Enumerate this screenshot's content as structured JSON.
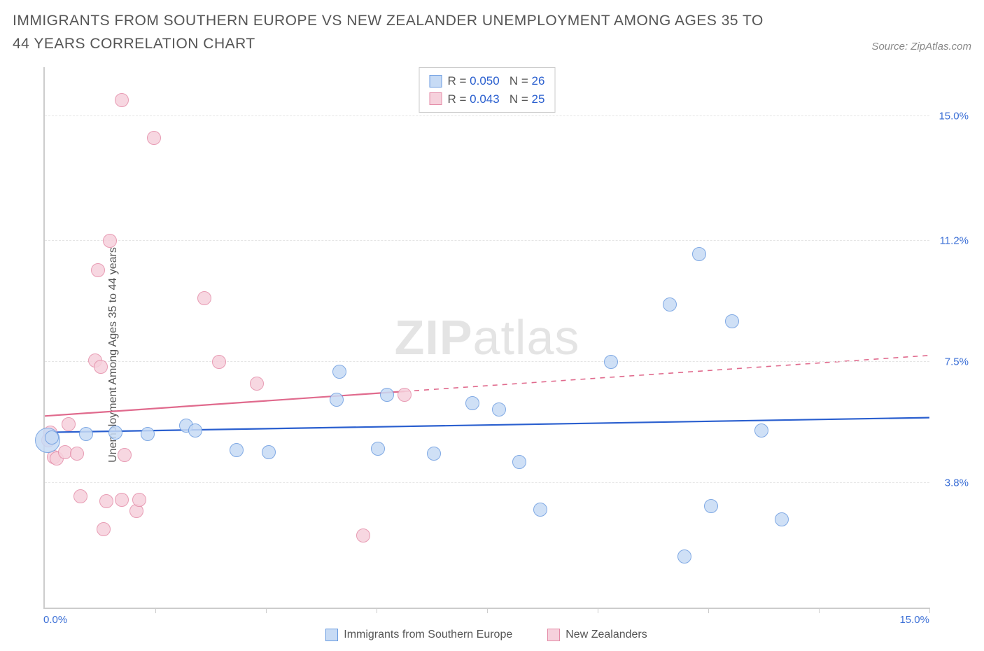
{
  "title": "IMMIGRANTS FROM SOUTHERN EUROPE VS NEW ZEALANDER UNEMPLOYMENT AMONG AGES 35 TO 44 YEARS CORRELATION CHART",
  "source_label": "Source: ZipAtlas.com",
  "ylabel": "Unemployment Among Ages 35 to 44 years",
  "watermark_bold": "ZIP",
  "watermark_rest": "atlas",
  "chart": {
    "type": "scatter",
    "xlim": [
      0,
      15
    ],
    "ylim": [
      0,
      16.5
    ],
    "x_min_label": "0.0%",
    "x_max_label": "15.0%",
    "y_ticks": [
      {
        "v": 3.8,
        "label": "3.8%"
      },
      {
        "v": 7.5,
        "label": "7.5%"
      },
      {
        "v": 11.2,
        "label": "11.2%"
      },
      {
        "v": 15.0,
        "label": "15.0%"
      }
    ],
    "x_tick_positions": [
      1.88,
      3.75,
      5.63,
      7.5,
      9.38,
      11.25,
      13.13,
      15.0
    ],
    "grid_color": "#e5e5e5",
    "axis_color": "#cccccc",
    "background_color": "#ffffff",
    "series": [
      {
        "name": "Immigrants from Southern Europe",
        "fill": "#c7dbf5",
        "stroke": "#6a9be0",
        "line_color": "#2a5fcf",
        "trend": {
          "x0": 0,
          "y0": 5.35,
          "x1": 15,
          "y1": 5.8,
          "solid_until_x": 15
        },
        "r_label": "0.050",
        "n_label": "26",
        "marker_r": 10,
        "points": [
          {
            "x": 0.05,
            "y": 5.1,
            "r": 18
          },
          {
            "x": 0.12,
            "y": 5.2
          },
          {
            "x": 0.7,
            "y": 5.3
          },
          {
            "x": 1.2,
            "y": 5.35
          },
          {
            "x": 1.75,
            "y": 5.3
          },
          {
            "x": 2.4,
            "y": 5.55
          },
          {
            "x": 2.55,
            "y": 5.4
          },
          {
            "x": 3.25,
            "y": 4.8
          },
          {
            "x": 3.8,
            "y": 4.75
          },
          {
            "x": 4.95,
            "y": 6.35
          },
          {
            "x": 5.0,
            "y": 7.2
          },
          {
            "x": 5.65,
            "y": 4.85
          },
          {
            "x": 5.8,
            "y": 6.5
          },
          {
            "x": 6.6,
            "y": 4.7
          },
          {
            "x": 7.25,
            "y": 6.25
          },
          {
            "x": 7.7,
            "y": 6.05
          },
          {
            "x": 8.05,
            "y": 4.45
          },
          {
            "x": 8.4,
            "y": 3.0
          },
          {
            "x": 9.6,
            "y": 7.5
          },
          {
            "x": 10.6,
            "y": 9.25
          },
          {
            "x": 10.85,
            "y": 1.55
          },
          {
            "x": 11.1,
            "y": 10.8
          },
          {
            "x": 11.3,
            "y": 3.1
          },
          {
            "x": 11.65,
            "y": 8.75
          },
          {
            "x": 12.15,
            "y": 5.4
          },
          {
            "x": 12.5,
            "y": 2.7
          }
        ]
      },
      {
        "name": "New Zealanders",
        "fill": "#f6d1dc",
        "stroke": "#e48ba7",
        "line_color": "#e06a8d",
        "trend": {
          "x0": 0,
          "y0": 5.85,
          "x1": 15,
          "y1": 7.7,
          "solid_until_x": 6.1
        },
        "r_label": "0.043",
        "n_label": "25",
        "marker_r": 10,
        "points": [
          {
            "x": 0.06,
            "y": 5.1
          },
          {
            "x": 0.1,
            "y": 5.35
          },
          {
            "x": 0.15,
            "y": 4.6
          },
          {
            "x": 0.2,
            "y": 4.55
          },
          {
            "x": 0.35,
            "y": 4.75
          },
          {
            "x": 0.4,
            "y": 5.6
          },
          {
            "x": 0.55,
            "y": 4.7
          },
          {
            "x": 0.6,
            "y": 3.4
          },
          {
            "x": 0.85,
            "y": 7.55
          },
          {
            "x": 0.9,
            "y": 10.3
          },
          {
            "x": 0.95,
            "y": 7.35
          },
          {
            "x": 1.0,
            "y": 2.4
          },
          {
            "x": 1.05,
            "y": 3.25
          },
          {
            "x": 1.1,
            "y": 11.2
          },
          {
            "x": 1.3,
            "y": 15.5
          },
          {
            "x": 1.3,
            "y": 3.3
          },
          {
            "x": 1.35,
            "y": 4.65
          },
          {
            "x": 1.55,
            "y": 2.95
          },
          {
            "x": 1.6,
            "y": 3.3
          },
          {
            "x": 1.85,
            "y": 14.35
          },
          {
            "x": 2.7,
            "y": 9.45
          },
          {
            "x": 2.95,
            "y": 7.5
          },
          {
            "x": 3.6,
            "y": 6.85
          },
          {
            "x": 5.4,
            "y": 2.2
          },
          {
            "x": 6.1,
            "y": 6.5
          }
        ]
      }
    ]
  },
  "legend": {
    "r_prefix": "R = ",
    "n_prefix": "N = "
  }
}
